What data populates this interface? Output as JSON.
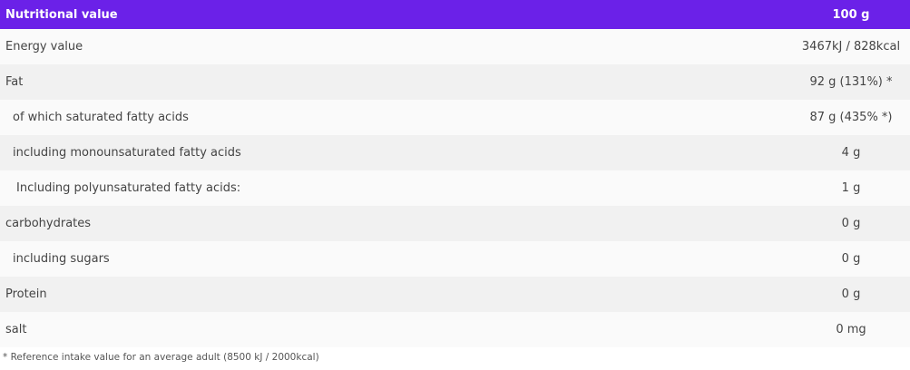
{
  "table": {
    "header": {
      "label": "Nutritional value",
      "value": "100 g"
    },
    "rows": [
      {
        "label": "Energy value",
        "value": "3467kJ / 828kcal"
      },
      {
        "label": "Fat",
        "value": "92 g (131%) *"
      },
      {
        "label": "of which saturated fatty acids",
        "value": "87 g (435% *)"
      },
      {
        "label": "including monounsaturated fatty acids",
        "value": "4 g"
      },
      {
        "label": "Including polyunsaturated fatty acids:",
        "value": "1 g"
      },
      {
        "label": "carbohydrates",
        "value": "0 g"
      },
      {
        "label": "including sugars",
        "value": "0 g"
      },
      {
        "label": "Protein",
        "value": "0 g"
      },
      {
        "label": "salt",
        "value": "0 mg"
      }
    ]
  },
  "footnote": "* Reference intake value for an average adult  (8500 kJ / 2000kcal)",
  "colors": {
    "header": "#6b21e8"
  }
}
